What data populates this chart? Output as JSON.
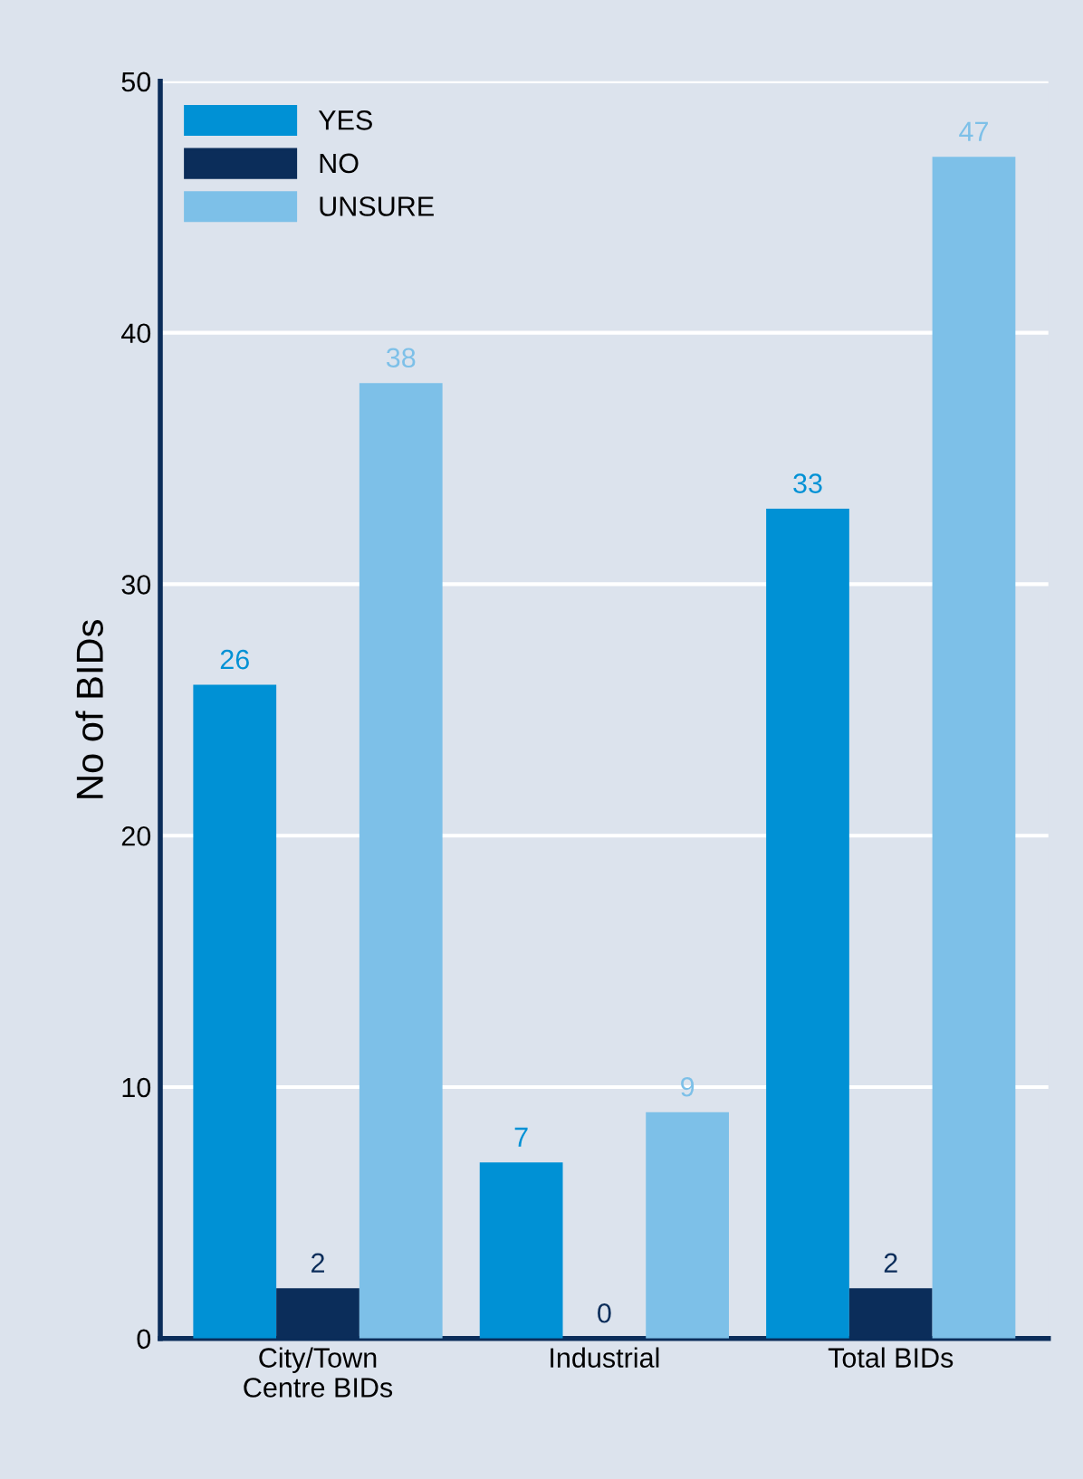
{
  "chart_data": {
    "type": "bar",
    "ylabel": "No of BIDs",
    "categories": [
      "City/Town\nCentre BIDs",
      "Industrial",
      "Total BIDs"
    ],
    "series": [
      {
        "name": "YES",
        "color": "#0091d5",
        "values": [
          26,
          7,
          33
        ]
      },
      {
        "name": "NO",
        "color": "#0b2d5a",
        "values": [
          2,
          0,
          2
        ]
      },
      {
        "name": "UNSURE",
        "color": "#7dc0e8",
        "values": [
          38,
          9,
          47
        ]
      }
    ],
    "ylim": [
      0,
      50
    ],
    "yticks": [
      0,
      10,
      20,
      30,
      40,
      50
    ],
    "grid": "y",
    "legend": "top left",
    "data_labels": true
  }
}
